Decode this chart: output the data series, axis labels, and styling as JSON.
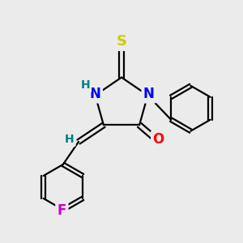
{
  "background_color": "#ebebeb",
  "bond_color": "#000000",
  "bond_width": 1.6,
  "atom_colors": {
    "N": "#0000ff",
    "O": "#ff0000",
    "S": "#cccc00",
    "F": "#cc00cc",
    "H_label": "#008080",
    "C": "#000000"
  },
  "font_size_atoms": 11,
  "figsize": [
    3.0,
    3.0
  ],
  "dpi": 100
}
